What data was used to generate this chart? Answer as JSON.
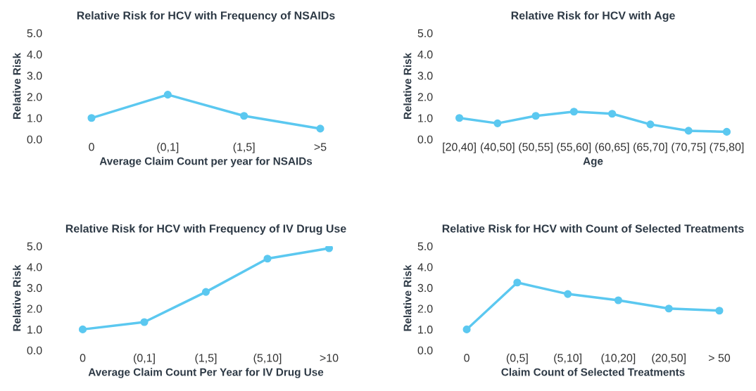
{
  "chart_data": [
    {
      "type": "line",
      "title": "Relative Risk for HCV with Frequency of NSAIDs",
      "xlabel": "Average Claim Count per year for NSAIDs",
      "ylabel": "Relative Risk",
      "categories": [
        "0",
        "(0,1]",
        "(1,5]",
        ">5"
      ],
      "series": [
        {
          "color": "#5bc8f0",
          "values": [
            1.0,
            2.1,
            1.1,
            0.5
          ]
        }
      ],
      "ylim": [
        0,
        5
      ],
      "yticks": [
        {
          "value": 0,
          "label": "0.0"
        },
        {
          "value": 1,
          "label": "1.0"
        },
        {
          "value": 2,
          "label": "2.0"
        },
        {
          "value": 3,
          "label": "3.0"
        },
        {
          "value": 4,
          "label": "4.0"
        },
        {
          "value": 5,
          "label": "5.0"
        }
      ],
      "marker": "circle",
      "grid": false
    },
    {
      "type": "line",
      "title": "Relative Risk for HCV with Age",
      "xlabel": "Age",
      "ylabel": "Relative Risk",
      "categories": [
        "[20,40]",
        "(40,50]",
        "(50,55]",
        "(55,60]",
        "(60,65]",
        "(65,70]",
        "(70,75]",
        "(75,80]"
      ],
      "series": [
        {
          "color": "#5bc8f0",
          "values": [
            1.0,
            0.75,
            1.1,
            1.3,
            1.2,
            0.7,
            0.4,
            0.35
          ]
        }
      ],
      "ylim": [
        0,
        5
      ],
      "yticks": [
        {
          "value": 0,
          "label": "0.0"
        },
        {
          "value": 1,
          "label": "1.0"
        },
        {
          "value": 2,
          "label": "2.0"
        },
        {
          "value": 3,
          "label": "3.0"
        },
        {
          "value": 4,
          "label": "4.0"
        },
        {
          "value": 5,
          "label": "5.0"
        }
      ],
      "marker": "circle",
      "grid": false
    },
    {
      "type": "line",
      "title": "Relative Risk for HCV with Frequency of IV Drug Use",
      "xlabel": "Average Claim Count Per Year for IV Drug Use",
      "ylabel": "Relative Risk",
      "categories": [
        "0",
        "(0,1]",
        "(1,5]",
        "(5,10]",
        ">10"
      ],
      "series": [
        {
          "color": "#5bc8f0",
          "values": [
            1.0,
            1.35,
            2.8,
            4.4,
            4.9
          ]
        }
      ],
      "ylim": [
        0,
        5
      ],
      "yticks": [
        {
          "value": 0,
          "label": "0.0"
        },
        {
          "value": 1,
          "label": "1.0"
        },
        {
          "value": 2,
          "label": "2.0"
        },
        {
          "value": 3,
          "label": "3.0"
        },
        {
          "value": 4,
          "label": "4.0"
        },
        {
          "value": 5,
          "label": "5.0"
        }
      ],
      "marker": "circle",
      "grid": false
    },
    {
      "type": "line",
      "title": "Relative Risk for HCV with Count of Selected Treatments",
      "xlabel": "Claim Count of Selected Treatments",
      "ylabel": "Relative Risk",
      "categories": [
        "0",
        "(0,5]",
        "(5,10]",
        "(10,20]",
        "(20,50]",
        "> 50"
      ],
      "series": [
        {
          "color": "#5bc8f0",
          "values": [
            1.0,
            3.25,
            2.7,
            2.4,
            2.0,
            1.9
          ]
        }
      ],
      "ylim": [
        0,
        5
      ],
      "yticks": [
        {
          "value": 0,
          "label": "0.0"
        },
        {
          "value": 1,
          "label": "1.0"
        },
        {
          "value": 2,
          "label": "2.0"
        },
        {
          "value": 3,
          "label": "3.0"
        },
        {
          "value": 4,
          "label": "4.0"
        },
        {
          "value": 5,
          "label": "5.0"
        }
      ],
      "marker": "circle",
      "grid": false
    }
  ]
}
